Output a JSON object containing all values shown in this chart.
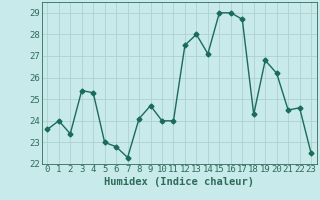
{
  "x": [
    0,
    1,
    2,
    3,
    4,
    5,
    6,
    7,
    8,
    9,
    10,
    11,
    12,
    13,
    14,
    15,
    16,
    17,
    18,
    19,
    20,
    21,
    22,
    23
  ],
  "y": [
    23.6,
    24.0,
    23.4,
    25.4,
    25.3,
    23.0,
    22.8,
    22.3,
    24.1,
    24.7,
    24.0,
    24.0,
    27.5,
    28.0,
    27.1,
    29.0,
    29.0,
    28.7,
    24.3,
    26.8,
    26.2,
    24.5,
    24.6,
    22.5
  ],
  "line_color": "#1a6b5a",
  "marker": "D",
  "markersize": 2.5,
  "linewidth": 1.0,
  "xlabel": "Humidex (Indice chaleur)",
  "xlim": [
    -0.5,
    23.5
  ],
  "ylim": [
    22,
    29.5
  ],
  "yticks": [
    22,
    23,
    24,
    25,
    26,
    27,
    28,
    29
  ],
  "xticks": [
    0,
    1,
    2,
    3,
    4,
    5,
    6,
    7,
    8,
    9,
    10,
    11,
    12,
    13,
    14,
    15,
    16,
    17,
    18,
    19,
    20,
    21,
    22,
    23
  ],
  "bg_color": "#c8eaea",
  "grid_color": "#b0d0d0",
  "tick_color": "#2e6b5a",
  "xlabel_fontsize": 7.5,
  "tick_fontsize": 6.5
}
